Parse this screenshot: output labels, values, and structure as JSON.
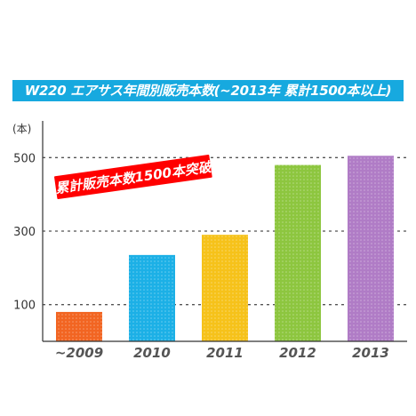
{
  "title": "W220 エアサス年間別販売本数(~2013年 累計1500本以上)",
  "annotation": "累計販売本数1500本突破",
  "chart_data": {
    "type": "bar",
    "unit": "(本)",
    "categories": [
      "~2009",
      "2010",
      "2011",
      "2012",
      "2013"
    ],
    "values": [
      80,
      235,
      290,
      480,
      505
    ],
    "colors": [
      "#f26522",
      "#1cb0e6",
      "#f6c21a",
      "#8dc63f",
      "#b07cc6"
    ],
    "yticks": [
      100,
      300,
      500
    ],
    "ylim": [
      0,
      600
    ],
    "grid": "dashed at ticks",
    "legend": "none"
  }
}
